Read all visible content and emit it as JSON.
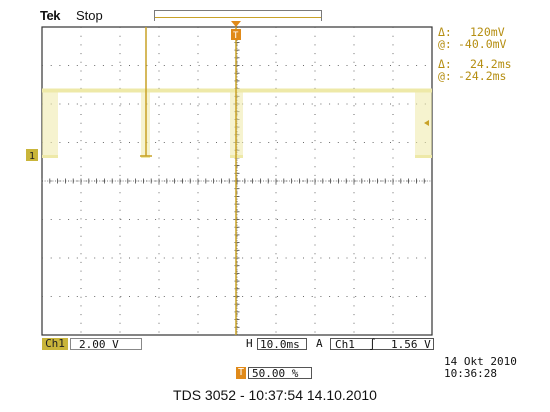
{
  "header": {
    "brand": "Tek",
    "status": "Stop"
  },
  "readouts": {
    "delta_voltage_symbol": "Δ:",
    "delta_voltage": "120mV",
    "at_voltage_symbol": "@:",
    "at_voltage": "-40.0mV",
    "delta_time_symbol": "Δ:",
    "delta_time": "24.2ms",
    "at_time_symbol": "@:",
    "at_time": "-24.2ms"
  },
  "markers": {
    "channel_marker": "1",
    "trigger_marker": "T"
  },
  "bottom_bar": {
    "channel": "Ch1",
    "vertical_scale": "2.00 V",
    "horizontal_label": "H",
    "horizontal_scale": "10.0ms",
    "acquire_label": "A",
    "trigger_source": "Ch1",
    "trigger_slope": "∫",
    "trigger_level": "1.56 V",
    "date": "14 Okt 2010",
    "time": "10:36:28",
    "trigger_position_icon": "T",
    "trigger_position": "50.00 %"
  },
  "caption": "TDS 3052 - 10:37:54   14.10.2010",
  "colors": {
    "trace": "#eee9a8",
    "cursor": "#c9a227",
    "readout": "#b58e12",
    "marker_orange": "#e08a1a",
    "grid": "#6a6a6a"
  }
}
